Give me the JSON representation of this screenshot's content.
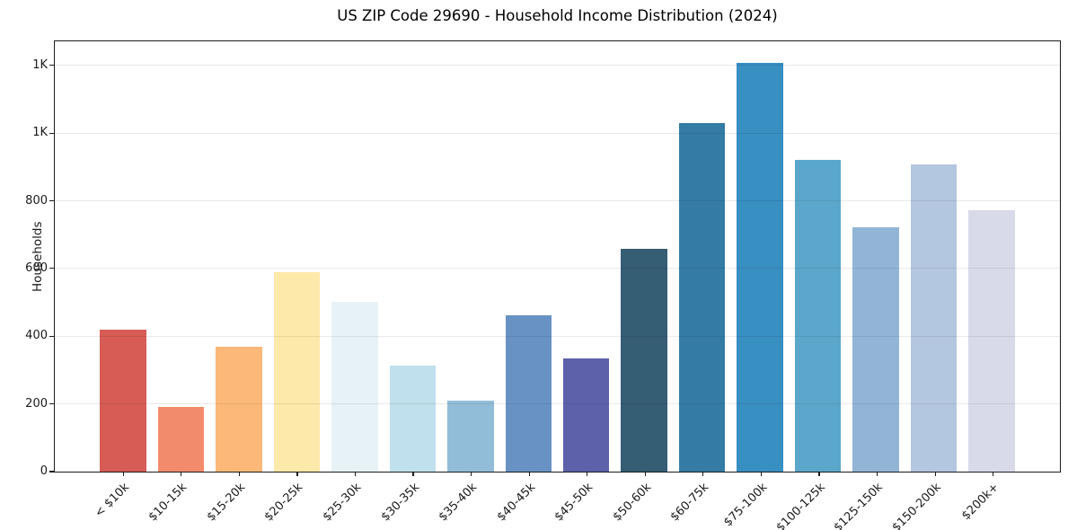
{
  "chart_data": {
    "type": "bar",
    "title": "US ZIP Code 29690 - Household Income Distribution (2024)",
    "xlabel": "",
    "ylabel": "Households",
    "categories": [
      "< $10k",
      "$10-15k",
      "$15-20k",
      "$20-25k",
      "$25-30k",
      "$30-35k",
      "$35-40k",
      "$40-45k",
      "$45-50k",
      "$50-60k",
      "$60-75k",
      "$75-100k",
      "$100-125k",
      "$125-150k",
      "$150-200k",
      "$200k+"
    ],
    "values": [
      418,
      192,
      368,
      589,
      501,
      313,
      210,
      463,
      335,
      658,
      1029,
      1208,
      921,
      723,
      907,
      773
    ],
    "bar_colors": [
      "#d65c55",
      "#f28b6c",
      "#fbb878",
      "#fde9a9",
      "#e7f2f7",
      "#bfe0ec",
      "#92bdd8",
      "#6892c4",
      "#5d61aa",
      "#355d73",
      "#347ca6",
      "#388fc2",
      "#5ba7cb",
      "#92b5d6",
      "#b4c7e0",
      "#d8dae9"
    ],
    "ylim": [
      0,
      1271
    ],
    "yticks": {
      "values": [
        0,
        200,
        400,
        600,
        800,
        1000,
        1200
      ],
      "labels": [
        "0",
        "200",
        "400",
        "600",
        "800",
        "1K",
        "1K"
      ]
    },
    "grid": "horizontal",
    "grid_color": "#e9e9e9",
    "legend_position": "none",
    "background_color": "#ffffff",
    "spine_color": "#1c1c1c"
  }
}
